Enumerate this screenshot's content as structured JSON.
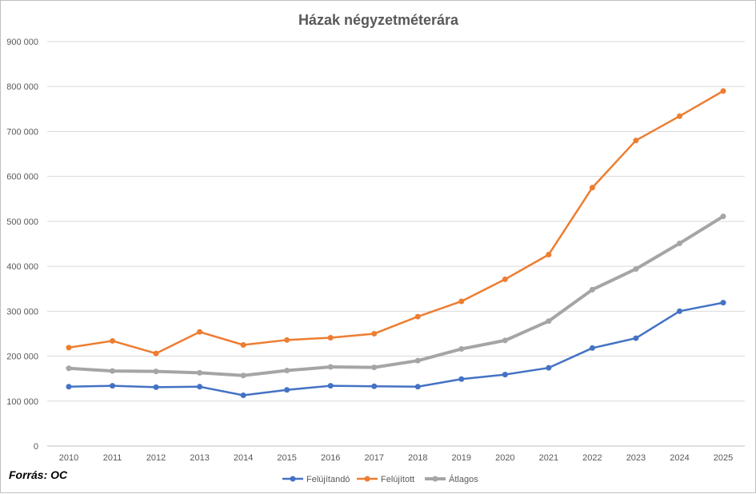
{
  "chart_data": {
    "type": "line",
    "title": "Házak négyzetméterára",
    "x": [
      "2010",
      "2011",
      "2012",
      "2013",
      "2014",
      "2015",
      "2016",
      "2017",
      "2018",
      "2019",
      "2020",
      "2021",
      "2022",
      "2023",
      "2024",
      "2025"
    ],
    "ylim": [
      0,
      900000
    ],
    "yticks": [
      0,
      100000,
      200000,
      300000,
      400000,
      500000,
      600000,
      700000,
      800000,
      900000
    ],
    "ytick_labels": [
      "0",
      "100 000",
      "200 000",
      "300 000",
      "400 000",
      "500 000",
      "600 000",
      "700 000",
      "800 000",
      "900 000"
    ],
    "grid": true,
    "legend_position": "bottom",
    "series": [
      {
        "name": "Felújítandó",
        "color": "#4472C4",
        "values": [
          132000,
          134000,
          131000,
          132000,
          113000,
          125000,
          134000,
          133000,
          132000,
          149000,
          159000,
          174000,
          218000,
          240000,
          300000,
          319000
        ]
      },
      {
        "name": "Felújított",
        "color": "#ED7D31",
        "values": [
          219000,
          234000,
          206000,
          254000,
          225000,
          236000,
          241000,
          250000,
          288000,
          322000,
          371000,
          426000,
          575000,
          680000,
          734000,
          790000
        ]
      },
      {
        "name": "Átlagos",
        "color": "#A5A5A5",
        "values": [
          173000,
          167000,
          166000,
          163000,
          157000,
          168000,
          176000,
          175000,
          190000,
          216000,
          235000,
          278000,
          348000,
          394000,
          451000,
          511000
        ]
      }
    ]
  },
  "source": "Forrás: OC"
}
